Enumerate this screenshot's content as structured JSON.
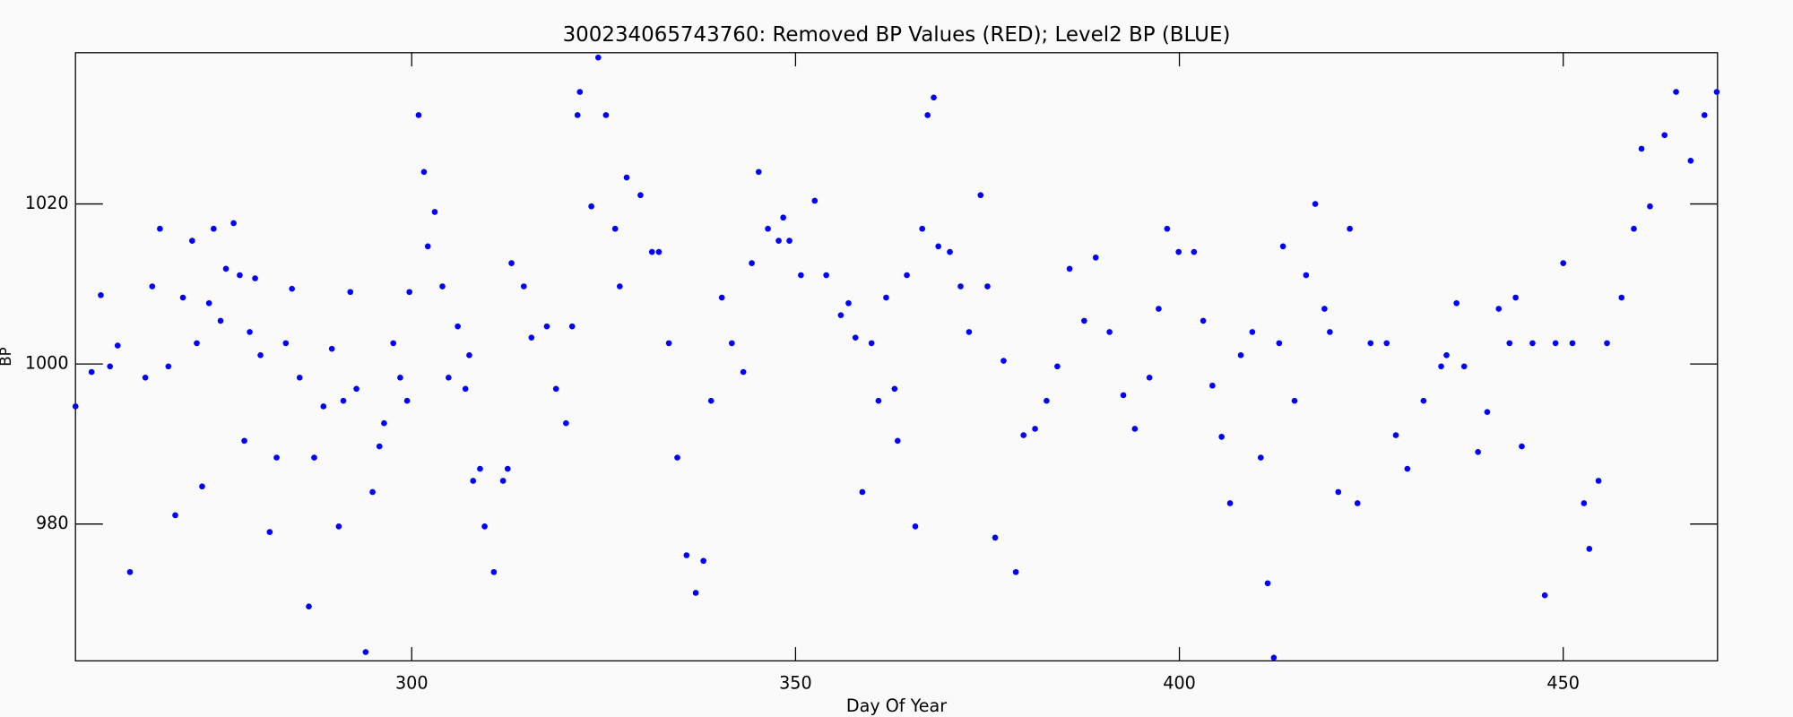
{
  "chart_data": {
    "type": "scatter",
    "title": "300234065743760: Removed BP Values (RED); Level2 BP (BLUE)",
    "x_label": "Day Of Year",
    "y_label": "BP",
    "xlim": [
      256.2,
      470.1
    ],
    "ylim": [
      962.9,
      1038.9
    ],
    "xticks": [
      300,
      350,
      400,
      450
    ],
    "yticks": [
      980,
      1000,
      1020
    ],
    "series": [
      {
        "name": "Level2 BP",
        "color": "#0000ff",
        "x": [
          256.2,
          258.3,
          259.5,
          260.7,
          261.7,
          263.3,
          265.3,
          266.2,
          267.2,
          268.3,
          269.2,
          270.2,
          271.4,
          272,
          272.7,
          273.6,
          274.2,
          275.1,
          275.8,
          276.8,
          277.6,
          278.2,
          278.9,
          279.6,
          280.3,
          281.5,
          282.4,
          283.6,
          284.4,
          285.4,
          286.6,
          287.3,
          288.5,
          289.6,
          290.5,
          291.1,
          292,
          292.8,
          294,
          294.9,
          295.8,
          296.4,
          297.6,
          298.5,
          299.4,
          299.7,
          300.9,
          301.6,
          302.1,
          303,
          304,
          304.8,
          306,
          307,
          307.5,
          308,
          308.9,
          309.5,
          310.7,
          311.9,
          312.5,
          313,
          314.6,
          315.6,
          317.6,
          318.8,
          320.1,
          320.9,
          321.6,
          321.9,
          323.4,
          324.3,
          325.3,
          326.5,
          327.1,
          328,
          329.8,
          331.3,
          332.2,
          333.5,
          334.6,
          335.8,
          337,
          338,
          339,
          340.4,
          341.7,
          343.2,
          344.3,
          345.2,
          346.4,
          347.8,
          348.4,
          349.2,
          350.7,
          352.5,
          354,
          355.9,
          356.9,
          357.8,
          358.7,
          359.9,
          360.8,
          361.8,
          362.9,
          363.3,
          364.5,
          365.6,
          366.5,
          367.2,
          368,
          368.6,
          370.1,
          371.5,
          372.6,
          374.1,
          375,
          376,
          377.1,
          378.7,
          379.7,
          381.2,
          382.7,
          384.1,
          385.7,
          387.6,
          389.1,
          390.9,
          392.7,
          394.2,
          396.1,
          397.3,
          398.4,
          399.9,
          401.9,
          403.1,
          404.3,
          405.5,
          406.6,
          408,
          409.5,
          410.6,
          411.5,
          412.3,
          413,
          413.5,
          415,
          416.5,
          417.7,
          418.9,
          419.6,
          420.7,
          422.2,
          423.2,
          424.9,
          427,
          428.2,
          429.7,
          431.8,
          434.1,
          434.8,
          436.1,
          437.1,
          438.9,
          440.1,
          441.6,
          443,
          443.8,
          444.6,
          446,
          447.6,
          449,
          450,
          451.2,
          452.7,
          453.4,
          454.6,
          455.7,
          457.6,
          459.2,
          460.2,
          461.3,
          463.2,
          464.7,
          466.6,
          468.4,
          470
        ],
        "values": [
          994.7,
          999,
          1008.6,
          999.7,
          1002.3,
          974,
          998.3,
          1009.7,
          1016.9,
          999.7,
          981.1,
          1008.3,
          1015.4,
          1002.6,
          984.7,
          1007.6,
          1016.9,
          1005.4,
          1011.9,
          1017.6,
          1011.1,
          990.4,
          1004,
          1010.7,
          1001.1,
          979,
          988.3,
          1002.6,
          1009.4,
          998.3,
          969.7,
          988.3,
          994.7,
          1001.9,
          979.7,
          995.4,
          1009,
          996.9,
          964,
          984,
          989.7,
          992.6,
          1002.6,
          998.3,
          995.4,
          1009,
          1031.1,
          1024,
          1014.7,
          1019,
          1009.7,
          998.3,
          1004.7,
          996.9,
          1001.1,
          985.4,
          986.9,
          979.7,
          974,
          985.4,
          986.9,
          1012.6,
          1009.7,
          1003.3,
          1004.7,
          996.9,
          992.6,
          1004.7,
          1031.1,
          1034,
          1019.7,
          1038.3,
          1031.1,
          1016.9,
          1009.7,
          1023.3,
          1021.1,
          1014,
          1014,
          1002.6,
          988.3,
          976.1,
          971.4,
          975.4,
          995.4,
          1008.3,
          1002.6,
          999,
          1012.6,
          1024,
          1016.9,
          1015.4,
          1018.3,
          1015.4,
          1011.1,
          1020.4,
          1011.1,
          1006.1,
          1007.6,
          1003.3,
          984,
          1002.6,
          995.4,
          1008.3,
          996.9,
          990.4,
          1011.1,
          979.7,
          1016.9,
          1031.1,
          1033.3,
          1014.7,
          1014,
          1009.7,
          1004,
          1021.1,
          1009.7,
          978.3,
          1000.4,
          974,
          991.1,
          991.9,
          995.4,
          999.7,
          1011.9,
          1005.4,
          1013.3,
          1004,
          996.1,
          991.9,
          998.3,
          1006.9,
          1016.9,
          1014,
          1014,
          1005.4,
          997.3,
          990.9,
          982.6,
          1001.1,
          1004,
          988.3,
          972.6,
          963.3,
          1002.6,
          1014.7,
          995.4,
          1011.1,
          1020,
          1006.9,
          1004,
          984,
          1016.9,
          982.6,
          1002.6,
          1002.6,
          991.1,
          986.9,
          995.4,
          999.7,
          1001.1,
          1007.6,
          999.7,
          989,
          994,
          1006.9,
          1002.6,
          1008.3,
          989.7,
          1002.6,
          971.1,
          1002.6,
          1012.6,
          1002.6,
          982.6,
          976.9,
          985.4,
          1002.6,
          1008.3,
          1016.9,
          1026.9,
          1019.7,
          1028.6,
          1034,
          1025.4,
          1031.1,
          1034
        ]
      }
    ]
  }
}
